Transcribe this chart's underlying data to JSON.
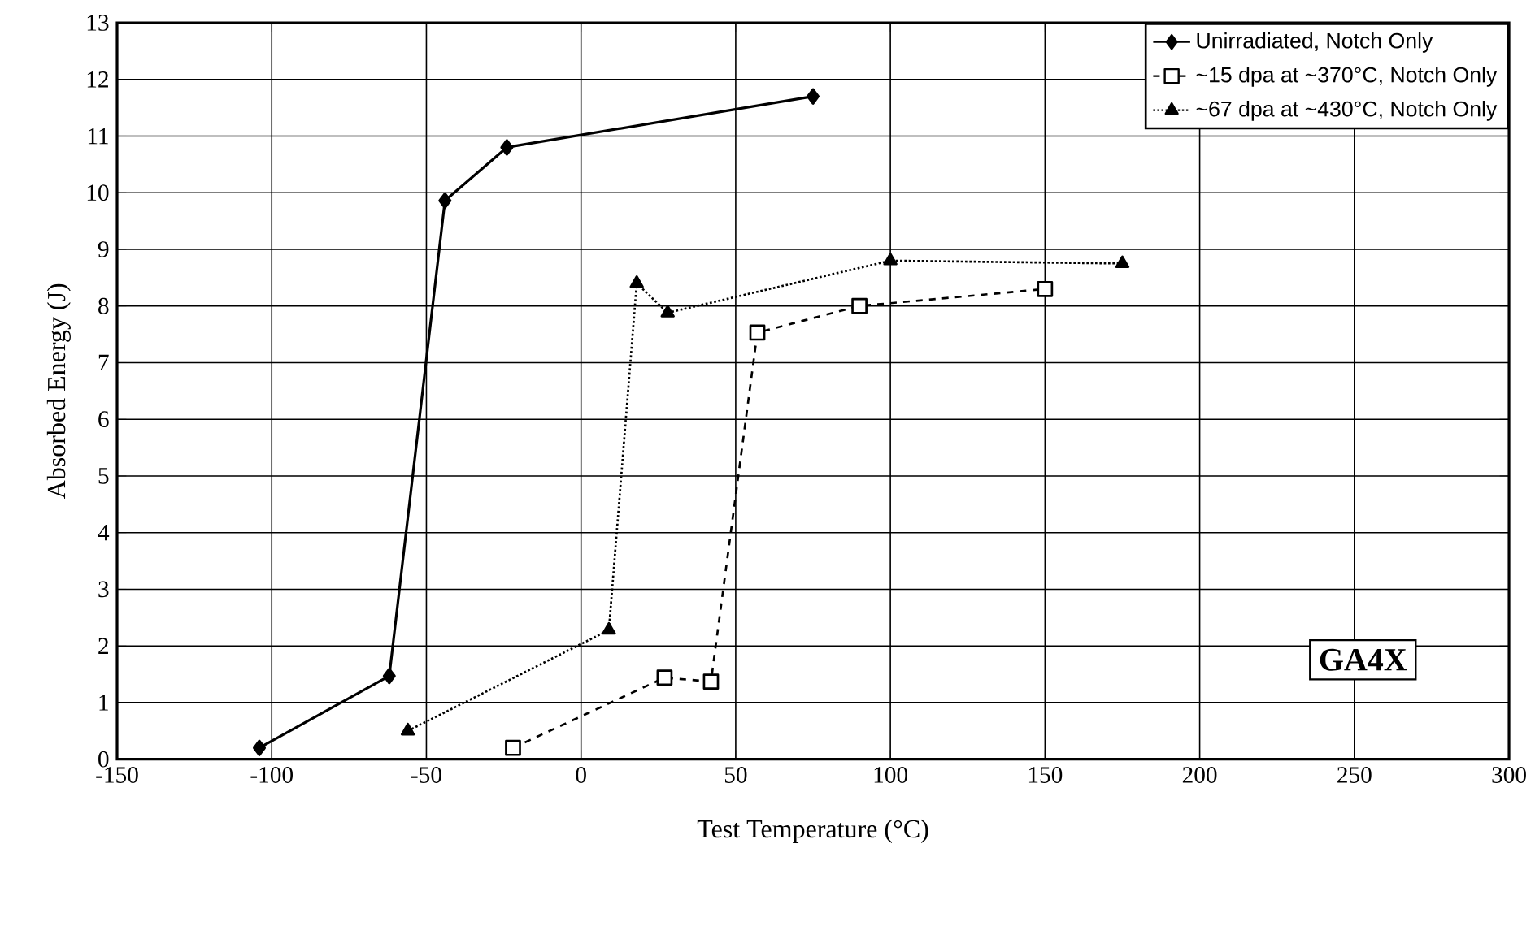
{
  "chart_data": {
    "type": "line",
    "xlabel": "Test Temperature (°C)",
    "ylabel": "Absorbed Energy (J)",
    "xlim": [
      -150,
      300
    ],
    "ylim": [
      0,
      13
    ],
    "xticks": [
      -150,
      -100,
      -50,
      0,
      50,
      100,
      150,
      200,
      250,
      300
    ],
    "yticks": [
      0,
      1,
      2,
      3,
      4,
      5,
      6,
      7,
      8,
      9,
      10,
      11,
      12,
      13
    ],
    "grid": true,
    "legend": "top right",
    "annotations": [
      "GA4X"
    ],
    "series": [
      {
        "name": "Unirradiated, Notch Only",
        "color": "#000000",
        "marker": "diamond",
        "line_style": "solid",
        "x": [
          -104,
          -62,
          -44,
          -24,
          75
        ],
        "values": [
          0.2,
          1.47,
          9.86,
          10.8,
          11.7
        ]
      },
      {
        "name": "~15 dpa at ~370°C, Notch Only",
        "color": "#000000",
        "marker": "square",
        "line_style": "dashed",
        "x": [
          -22,
          27,
          42,
          57,
          90,
          150
        ],
        "values": [
          0.2,
          1.44,
          1.37,
          7.53,
          8.0,
          8.3
        ]
      },
      {
        "name": "~67 dpa at ~430°C, Notch Only",
        "color": "#000000",
        "marker": "triangle",
        "line_style": "dotted",
        "x": [
          -56,
          9,
          18,
          28,
          100,
          175
        ],
        "values": [
          0.5,
          2.28,
          8.4,
          7.88,
          8.8,
          8.75
        ]
      }
    ]
  }
}
